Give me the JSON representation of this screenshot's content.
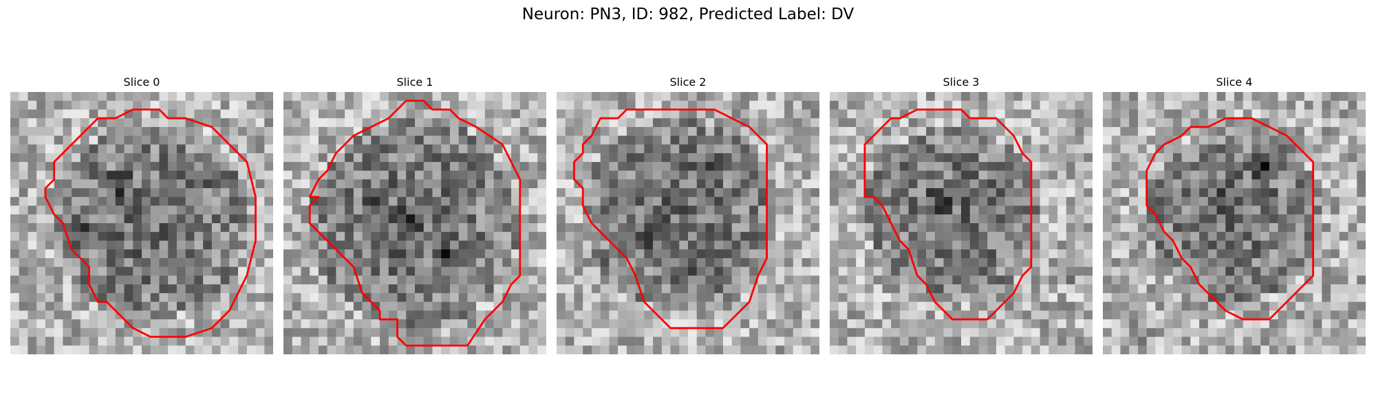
{
  "figure": {
    "suptitle": "Neuron: PN3, ID: 982, Predicted Label: DV",
    "contour_color": "#ff0000",
    "image_colormap": "gray"
  },
  "panels": [
    {
      "title": "Slice 0"
    },
    {
      "title": "Slice 1"
    },
    {
      "title": "Slice 2"
    },
    {
      "title": "Slice 3"
    },
    {
      "title": "Slice 4"
    }
  ]
}
